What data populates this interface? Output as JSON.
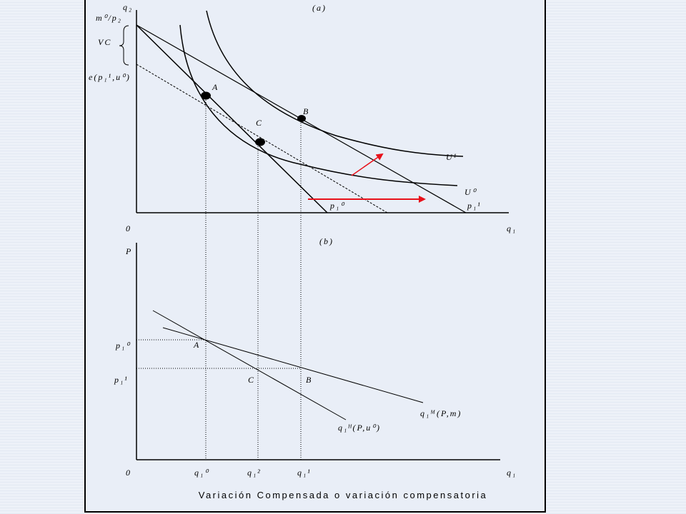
{
  "caption": "Variación Compensada o variación compensatoria",
  "panel_a": {
    "title": "(a)",
    "y_axis_label": "q₂",
    "x_axis_label": "q₁",
    "origin": "0",
    "vc_label": "VC",
    "m_over_p2": "m⁰/p₂",
    "expenditure": "e(p₁¹,u⁰)",
    "point_a": "A",
    "point_b": "B",
    "point_c": "C",
    "u1": "U¹",
    "u0": "U⁰",
    "budget0": "p₁⁰",
    "budget1": "p₁¹"
  },
  "panel_b": {
    "title": "(b)",
    "y_axis_label": "P",
    "x_axis_label": "q₁",
    "origin": "0",
    "p10": "p₁⁰",
    "p11": "p₁¹",
    "point_a": "A",
    "point_b": "B",
    "point_c": "C",
    "marshallian": "q₁ᴹ(P,m)",
    "hicksian": "q₁ᴴ(P,u⁰)",
    "q10": "q₁⁰",
    "q12": "q₁²",
    "q11": "q₁¹"
  },
  "colors": {
    "arrow": "#e8101a",
    "line": "#000000",
    "panel": "#e9eef7"
  }
}
